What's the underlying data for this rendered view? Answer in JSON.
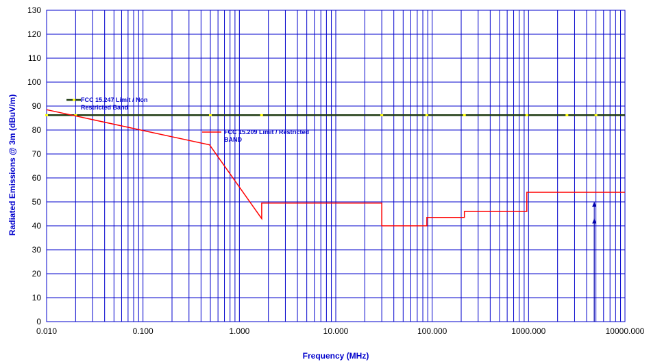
{
  "chart_data": {
    "type": "line",
    "xlabel": "Frequency (MHz)",
    "ylabel": "Radiated Emissions @ 3m (dBuV/m)",
    "xscale": "log",
    "xlim": [
      0.01,
      10000
    ],
    "ylim": [
      0,
      130
    ],
    "grid": true,
    "x_tick_labels": [
      "0.010",
      "0.100",
      "1.000",
      "10.000",
      "100.000",
      "1000.000",
      "10000.000"
    ],
    "y_tick_labels": [
      "0",
      "10",
      "20",
      "30",
      "40",
      "50",
      "60",
      "70",
      "80",
      "90",
      "100",
      "110",
      "120",
      "130"
    ],
    "colors": {
      "grid": "#0000cc",
      "axis_text": "#0000cc",
      "fcc_15_247": "#1e3a10",
      "fcc_15_247_markers": "#ffff00",
      "fcc_15_209": "#ff0000",
      "arrows": "#0000aa"
    },
    "series": [
      {
        "name": "FCC 15.247 Limit / Non Restricted Band",
        "label_lines": [
          "FCC 15.247 Limit / Non",
          "Restricted Band"
        ],
        "x": [
          0.01,
          10000
        ],
        "y": [
          86.2,
          86.2
        ],
        "markers_x": [
          0.01,
          0.02,
          0.5,
          1.7,
          30,
          88,
          216,
          960,
          2500,
          5000
        ]
      },
      {
        "name": "FCC 15.209 Limit / Restricted BAND",
        "label_lines": [
          "FCC 15.209 Limit / Restricted",
          "BAND"
        ],
        "x": [
          0.01,
          0.49,
          1.705,
          1.705,
          30,
          30,
          88,
          88,
          216,
          216,
          960,
          960,
          10000
        ],
        "y": [
          88.5,
          73.8,
          43,
          49.5,
          49.5,
          40,
          40,
          43.5,
          43.5,
          46,
          46,
          54,
          54
        ]
      }
    ],
    "annotations": [
      {
        "type": "arrow",
        "x": 4800,
        "y_from": 0,
        "y_to": 43
      },
      {
        "type": "arrow",
        "x": 4800,
        "y_from": 0,
        "y_to": 50
      }
    ]
  }
}
